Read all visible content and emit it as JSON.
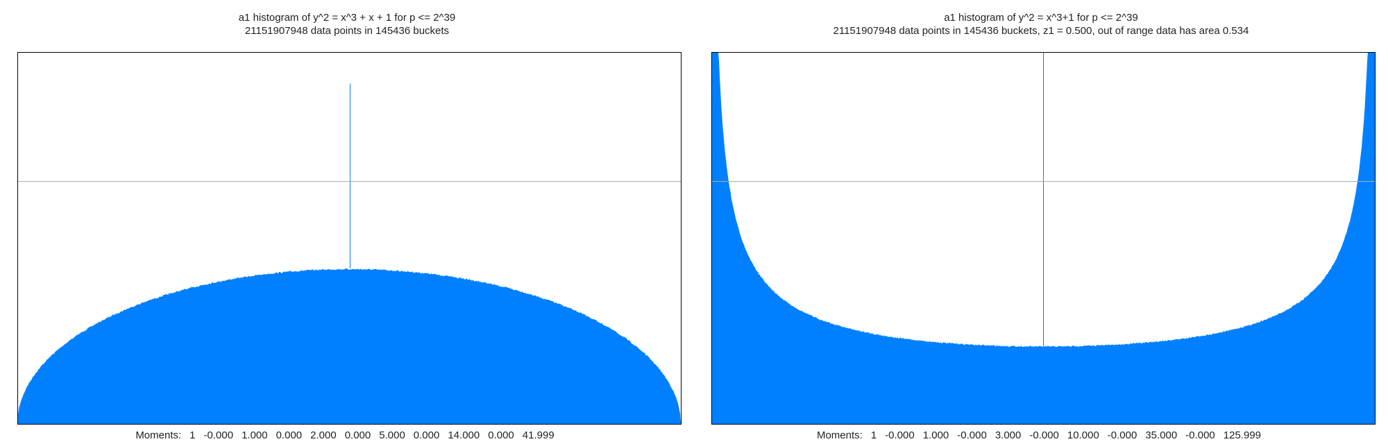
{
  "colors": {
    "fill": "#0080ff",
    "frame": "#000000",
    "guide": "#aaaaaa"
  },
  "chart_data": [
    {
      "type": "area",
      "title": "a1 histogram of y^2 = x^3 + x + 1 for p <= 2^39",
      "subtitle": "21151907948 data points in 145436 buckets",
      "shape": "semicircle",
      "x_range": [
        -2,
        2
      ],
      "reference_line_y": 0.5,
      "ylim": [
        0,
        0.765
      ],
      "spike_at_x": 0.0,
      "spike_height": 0.7,
      "moments_label": "Moments:",
      "moments": [
        "1",
        "-0.000",
        "1.000",
        "0.000",
        "2.000",
        "0.000",
        "5.000",
        "0.000",
        "14.000",
        "0.000",
        "41.999"
      ]
    },
    {
      "type": "area",
      "title": "a1 histogram of y^2 = x^3+1 for p <= 2^39",
      "subtitle": "21151907948 data points in 145436 buckets, z1 = 0.500, out of range data has area 0.534",
      "shape": "inverse-semicircle",
      "x_range": [
        -2,
        2
      ],
      "reference_line_y": 0.5,
      "ylim": [
        0,
        0.765
      ],
      "center_line_x": 0.0,
      "moments_label": "Moments:",
      "moments": [
        "1",
        "-0.000",
        "1.000",
        "-0.000",
        "3.000",
        "-0.000",
        "10.000",
        "-0.000",
        "35.000",
        "-0.000",
        "125.999"
      ]
    }
  ]
}
